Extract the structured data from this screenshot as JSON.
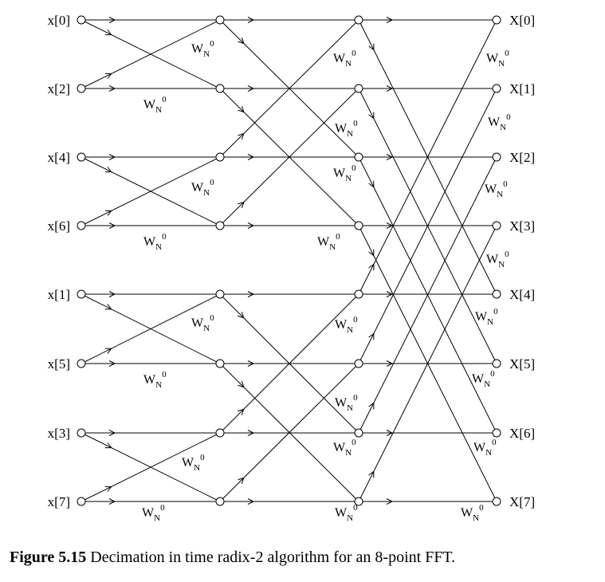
{
  "inputs": [
    "x[0]",
    "x[2]",
    "x[4]",
    "x[6]",
    "x[1]",
    "x[5]",
    "x[3]",
    "x[7]"
  ],
  "outputs": [
    "X[0]",
    "X[1]",
    "X[2]",
    "X[3]",
    "X[4]",
    "X[5]",
    "X[6]",
    "X[7]"
  ],
  "twiddle": {
    "base": "W",
    "sub": "N",
    "sup": "0"
  },
  "caption": {
    "label": "Figure 5.15",
    "text": " Decimation in time radix-2 algorithm for an 8-point FFT."
  }
}
